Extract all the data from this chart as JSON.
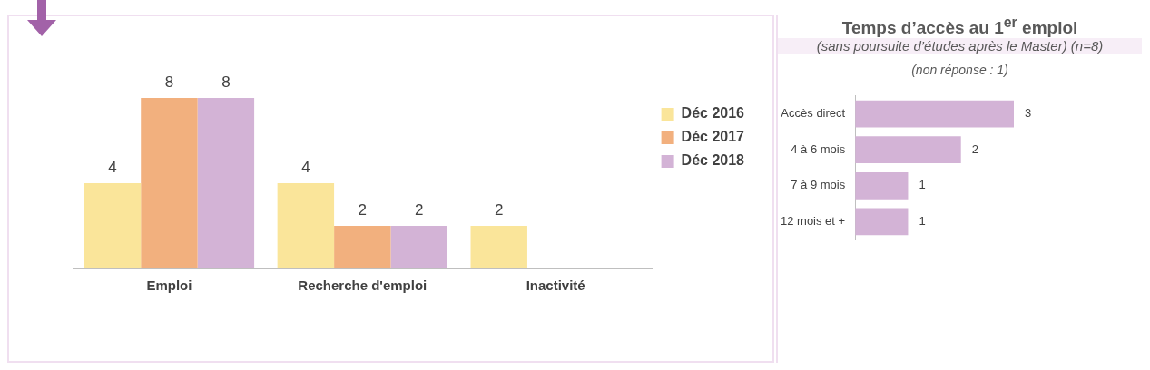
{
  "chart_data": [
    {
      "type": "bar",
      "categories": [
        "Emploi",
        "Recherche d'emploi",
        "Inactivité"
      ],
      "series": [
        {
          "name": "Déc 2016",
          "color": "#fae59a",
          "values": [
            4,
            4,
            2
          ]
        },
        {
          "name": "Déc 2017",
          "color": "#f2b07e",
          "values": [
            8,
            2,
            null
          ]
        },
        {
          "name": "Déc 2018",
          "color": "#d3b3d6",
          "values": [
            8,
            2,
            null
          ]
        }
      ],
      "data_labels": true,
      "legend": "top right",
      "tick_labels": "x"
    },
    {
      "type": "bar",
      "orientation": "horizontal",
      "title": "Temps d’accès au 1$^{er}$ emploi",
      "subtitle": "(sans poursuite d’études après le Master) (n=8)",
      "annotations": [
        "(non réponse : 1)"
      ],
      "categories": [
        "Accès direct",
        "4 à 6 mois",
        "7 à 9 mois",
        "12 mois et +"
      ],
      "values": [
        3,
        2,
        1,
        1
      ],
      "color": "#d3b3d6",
      "data_labels": true,
      "tick_labels": "y"
    }
  ]
}
